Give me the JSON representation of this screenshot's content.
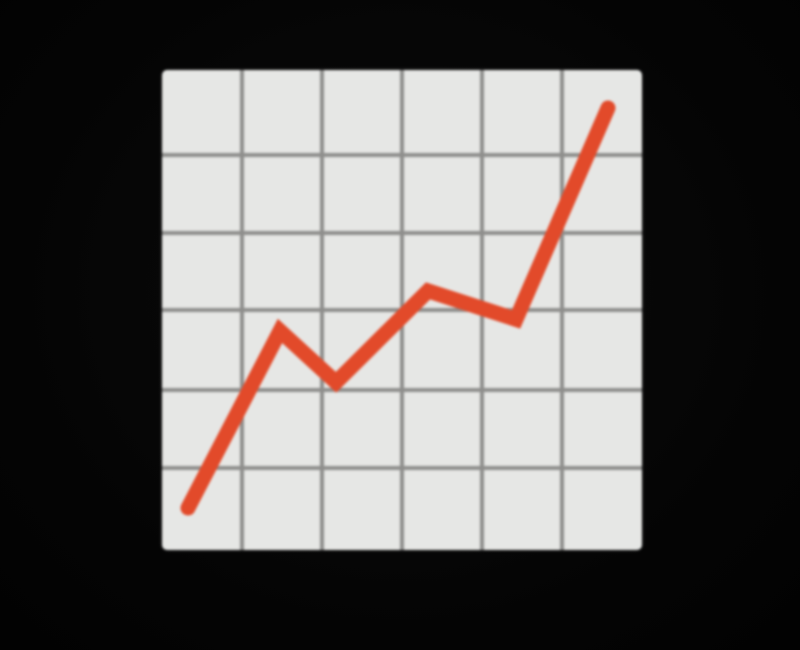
{
  "emoji": {
    "icon": "chart-increasing-icon",
    "colors": {
      "background": "#050505",
      "tile": "#e6e7e5",
      "grid": "#8e8e8c",
      "line": "#e24a2a"
    },
    "trend": [
      0,
      3.1,
      2.2,
      3.8,
      3.3,
      7.0
    ]
  }
}
